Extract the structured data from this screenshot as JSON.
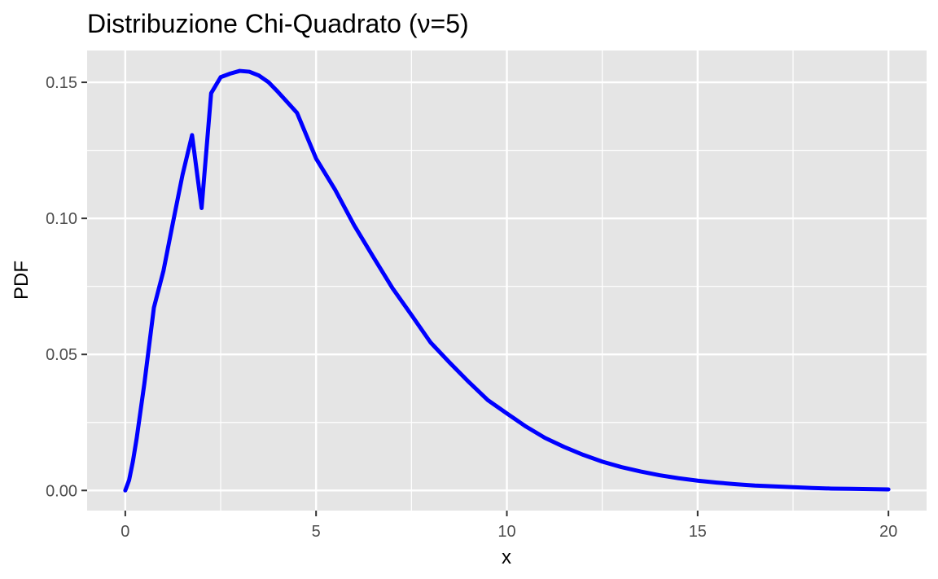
{
  "chart_data": {
    "type": "line",
    "title": "Distribuzione Chi-Quadrato (ν=5)",
    "xlabel": "x",
    "ylabel": "PDF",
    "xlim": [
      -1,
      21
    ],
    "ylim": [
      -0.0074,
      0.1617
    ],
    "x_ticks": [
      0,
      5,
      10,
      15,
      20
    ],
    "x_tick_labels": [
      "0",
      "5",
      "10",
      "15",
      "20"
    ],
    "y_ticks": [
      0.0,
      0.05,
      0.1,
      0.15
    ],
    "y_tick_labels": [
      "0.00",
      "0.05",
      "0.10",
      "0.15"
    ],
    "grid": true,
    "background": "#e5e5e5",
    "grid_major_color": "#ffffff",
    "series": [
      {
        "color": "#0000ff",
        "x": [
          0,
          0.1,
          0.2,
          0.3,
          0.5,
          0.75,
          1,
          1.25,
          1.5,
          1.75,
          2,
          2.25,
          2.5,
          2.75,
          3,
          3.25,
          3.5,
          3.75,
          4,
          4.5,
          5,
          5.5,
          6,
          6.5,
          7,
          7.5,
          8,
          8.5,
          9,
          9.5,
          10,
          10.5,
          11,
          11.5,
          12,
          12.5,
          13,
          13.5,
          14,
          14.5,
          15,
          15.5,
          16,
          16.5,
          17,
          17.5,
          18,
          18.5,
          19,
          19.5,
          20
        ],
        "y": [
          0,
          0.0038,
          0.0107,
          0.0193,
          0.0393,
          0.0672,
          0.0807,
          0.0985,
          0.116,
          0.1306,
          0.1038,
          0.146,
          0.1519,
          0.1532,
          0.1542,
          0.1539,
          0.1525,
          0.1501,
          0.1465,
          0.1388,
          0.122,
          0.1105,
          0.0974,
          0.0858,
          0.0744,
          0.0645,
          0.0544,
          0.047,
          0.0399,
          0.0332,
          0.0283,
          0.0235,
          0.0193,
          0.016,
          0.0131,
          0.0106,
          0.0086,
          0.007,
          0.0056,
          0.0045,
          0.0036,
          0.0029,
          0.0023,
          0.0018,
          0.0015,
          0.0012,
          0.0009,
          0.0007,
          0.0006,
          0.0005,
          0.0004
        ]
      }
    ]
  }
}
